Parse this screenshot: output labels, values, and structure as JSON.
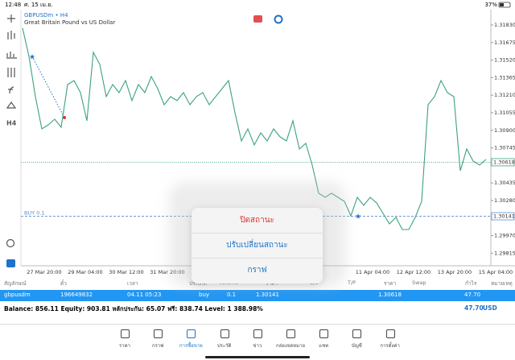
{
  "status": {
    "time": "12:48",
    "date": "ศ. 15 เม.ย.",
    "battery": "37%"
  },
  "chart": {
    "type": "line",
    "title": "GBPUSDm • H4",
    "subtitle": "Great Britain Pound vs US Dollar",
    "timeframe": "H4",
    "ylim": [
      1.29704,
      1.31965
    ],
    "yticks": [
      {
        "value": 1.3183,
        "label": "1.31830"
      },
      1.31675,
      {
        "value": 1.3152,
        "label": "1.31520"
      },
      1.31365,
      {
        "value": 1.3121,
        "label": "1.31210"
      },
      1.31055,
      {
        "value": 1.309,
        "label": "1.30900"
      },
      1.30745,
      1.30435,
      {
        "value": 1.3028,
        "label": "1.30280"
      },
      {
        "value": 1.2997,
        "label": "1.29970"
      },
      1.29815
    ],
    "bid": 1.30618,
    "order_price": 1.30141,
    "order_label": "BUY 0.1",
    "xlabels": [
      "27 Mar 20:00",
      "29 Mar 04:00",
      "30 Mar 12:00",
      "31 Mar 20:00",
      "11 Apr 04:00",
      "12 Apr 12:00",
      "13 Apr 20:00",
      "15 Apr 04:00"
    ],
    "series": {
      "color": "#3aa37a",
      "values": [
        1.31802,
        1.31553,
        1.31197,
        1.30913,
        1.30948,
        1.30998,
        1.30927,
        1.31304,
        1.31339,
        1.31233,
        1.30984,
        1.31588,
        1.31482,
        1.31197,
        1.31304,
        1.31233,
        1.31339,
        1.31162,
        1.31304,
        1.31233,
        1.31375,
        1.31268,
        1.31126,
        1.31197,
        1.31162,
        1.31233,
        1.31126,
        1.31197,
        1.31233,
        1.31126,
        1.31197,
        1.31268,
        1.31339,
        1.31055,
        1.30806,
        1.30913,
        1.30771,
        1.30877,
        1.30806,
        1.30913,
        1.30842,
        1.30806,
        1.30984,
        1.30735,
        1.30785,
        1.30593,
        1.30344,
        1.30308,
        1.30344,
        1.30308,
        1.30273,
        1.30145,
        1.30308,
        1.30237,
        1.30308,
        1.30259,
        1.30166,
        1.30074,
        1.30131,
        1.30024,
        1.30024,
        1.30131,
        1.30273,
        1.31126,
        1.31197,
        1.31339,
        1.31233,
        1.31197,
        1.30543,
        1.30735,
        1.30628,
        1.30593,
        1.30643
      ]
    }
  },
  "popup": [
    "ปิดสถานะ",
    "ปรับเปลี่ยนสถานะ",
    "กราฟ"
  ],
  "table": {
    "headers": [
      "สัญลักษณ์",
      "ตั๋ว",
      "เวลา",
      "ประเภท",
      "Volume",
      "ราคา",
      "S/L",
      "T/P",
      "ราคา",
      "Swap",
      "กำไร",
      "หมายเหตุ"
    ],
    "row": [
      "gbpusdm",
      "196649832",
      "04.11 05:23",
      "buy",
      "0.1",
      "1.30141",
      "1.30618",
      "47.70"
    ],
    "balance": "Balance: 856.11 Equity: 903.81 หลักประกัน: 65.07 ฟรี: 838.74 Level: 1 388.98%",
    "total": "47.70",
    "currency": "USD"
  },
  "tabs": [
    "ราคา",
    "กราฟ",
    "การซื้อขาย",
    "ประวัติ",
    "ข่าว",
    "กล่องจดหมาย",
    "แชท",
    "บัญชี",
    "การตั้งค่า"
  ]
}
